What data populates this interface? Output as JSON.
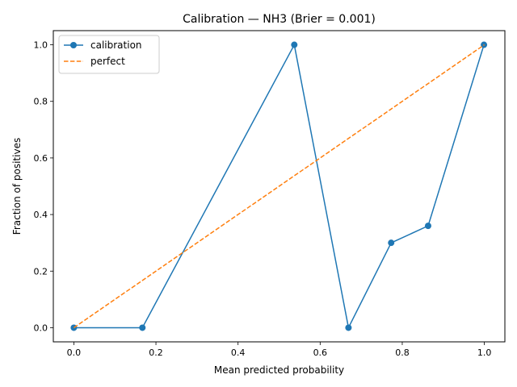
{
  "chart_data": {
    "type": "line",
    "title": "Calibration — NH3  (Brier = 0.001)",
    "xlabel": "Mean predicted probability",
    "ylabel": "Fraction of positives",
    "xlim": [
      -0.05,
      1.05
    ],
    "ylim": [
      -0.05,
      1.05
    ],
    "xticks": [
      0.0,
      0.2,
      0.4,
      0.6,
      0.8,
      1.0
    ],
    "yticks": [
      0.0,
      0.2,
      0.4,
      0.6,
      0.8,
      1.0
    ],
    "xtick_labels": [
      "0.0",
      "0.2",
      "0.4",
      "0.6",
      "0.8",
      "1.0"
    ],
    "ytick_labels": [
      "0.0",
      "0.2",
      "0.4",
      "0.6",
      "0.8",
      "1.0"
    ],
    "grid": false,
    "legend_position": "upper-left",
    "series": [
      {
        "name": "calibration",
        "color": "#1f77b4",
        "style": "solid",
        "markers": true,
        "x": [
          0.0,
          0.167,
          0.537,
          0.669,
          0.773,
          0.863,
          0.999
        ],
        "y": [
          0.0,
          0.0,
          1.0,
          0.0,
          0.3,
          0.36,
          1.0
        ]
      },
      {
        "name": "perfect",
        "color": "#ff7f0e",
        "style": "dashed",
        "markers": false,
        "x": [
          0.0,
          1.0
        ],
        "y": [
          0.0,
          1.0
        ]
      }
    ]
  }
}
